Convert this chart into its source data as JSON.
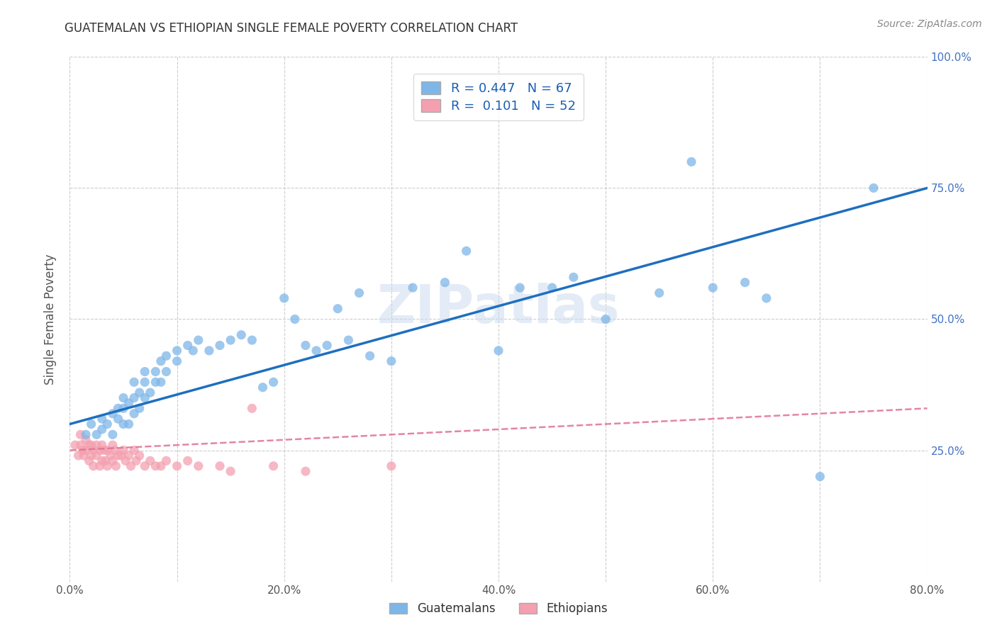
{
  "title": "GUATEMALAN VS ETHIOPIAN SINGLE FEMALE POVERTY CORRELATION CHART",
  "source": "Source: ZipAtlas.com",
  "ylabel": "Single Female Poverty",
  "xlim": [
    0.0,
    0.8
  ],
  "ylim": [
    0.0,
    1.0
  ],
  "xtick_labels": [
    "0.0%",
    "",
    "20.0%",
    "",
    "40.0%",
    "",
    "60.0%",
    "",
    "80.0%"
  ],
  "xtick_vals": [
    0.0,
    0.1,
    0.2,
    0.3,
    0.4,
    0.5,
    0.6,
    0.7,
    0.8
  ],
  "ytick_labels": [
    "25.0%",
    "50.0%",
    "75.0%",
    "100.0%"
  ],
  "ytick_vals": [
    0.25,
    0.5,
    0.75,
    1.0
  ],
  "watermark": "ZIPatlas",
  "guatemalan_color": "#7eb6e8",
  "ethiopian_color": "#f4a0b0",
  "guatemalan_line_color": "#1e6fbf",
  "ethiopian_line_color": "#e07090",
  "background_color": "#ffffff",
  "grid_color": "#c8c8c8",
  "guatemalan_x": [
    0.015,
    0.02,
    0.025,
    0.03,
    0.03,
    0.035,
    0.04,
    0.04,
    0.045,
    0.045,
    0.05,
    0.05,
    0.05,
    0.055,
    0.055,
    0.06,
    0.06,
    0.06,
    0.065,
    0.065,
    0.07,
    0.07,
    0.07,
    0.075,
    0.08,
    0.08,
    0.085,
    0.085,
    0.09,
    0.09,
    0.1,
    0.1,
    0.11,
    0.115,
    0.12,
    0.13,
    0.14,
    0.15,
    0.16,
    0.17,
    0.18,
    0.19,
    0.2,
    0.21,
    0.22,
    0.23,
    0.24,
    0.25,
    0.26,
    0.27,
    0.28,
    0.3,
    0.32,
    0.35,
    0.37,
    0.4,
    0.42,
    0.45,
    0.47,
    0.5,
    0.55,
    0.58,
    0.6,
    0.63,
    0.65,
    0.7,
    0.75
  ],
  "guatemalan_y": [
    0.28,
    0.3,
    0.28,
    0.29,
    0.31,
    0.3,
    0.32,
    0.28,
    0.33,
    0.31,
    0.3,
    0.33,
    0.35,
    0.34,
    0.3,
    0.35,
    0.38,
    0.32,
    0.36,
    0.33,
    0.38,
    0.4,
    0.35,
    0.36,
    0.38,
    0.4,
    0.42,
    0.38,
    0.4,
    0.43,
    0.42,
    0.44,
    0.45,
    0.44,
    0.46,
    0.44,
    0.45,
    0.46,
    0.47,
    0.46,
    0.37,
    0.38,
    0.54,
    0.5,
    0.45,
    0.44,
    0.45,
    0.52,
    0.46,
    0.55,
    0.43,
    0.42,
    0.56,
    0.57,
    0.63,
    0.44,
    0.56,
    0.56,
    0.58,
    0.5,
    0.55,
    0.8,
    0.56,
    0.57,
    0.54,
    0.2,
    0.75
  ],
  "ethiopian_x": [
    0.005,
    0.008,
    0.01,
    0.01,
    0.012,
    0.013,
    0.015,
    0.015,
    0.018,
    0.018,
    0.02,
    0.02,
    0.022,
    0.022,
    0.025,
    0.025,
    0.028,
    0.028,
    0.03,
    0.03,
    0.032,
    0.033,
    0.035,
    0.035,
    0.038,
    0.04,
    0.04,
    0.042,
    0.043,
    0.045,
    0.048,
    0.05,
    0.052,
    0.055,
    0.057,
    0.06,
    0.062,
    0.065,
    0.07,
    0.075,
    0.08,
    0.085,
    0.09,
    0.1,
    0.11,
    0.12,
    0.14,
    0.15,
    0.17,
    0.19,
    0.22,
    0.3
  ],
  "ethiopian_y": [
    0.26,
    0.24,
    0.28,
    0.26,
    0.25,
    0.24,
    0.27,
    0.25,
    0.26,
    0.23,
    0.26,
    0.24,
    0.25,
    0.22,
    0.26,
    0.24,
    0.25,
    0.22,
    0.26,
    0.23,
    0.25,
    0.23,
    0.25,
    0.22,
    0.24,
    0.26,
    0.23,
    0.25,
    0.22,
    0.24,
    0.24,
    0.25,
    0.23,
    0.24,
    0.22,
    0.25,
    0.23,
    0.24,
    0.22,
    0.23,
    0.22,
    0.22,
    0.23,
    0.22,
    0.23,
    0.22,
    0.22,
    0.21,
    0.33,
    0.22,
    0.21,
    0.22
  ],
  "guate_line_x": [
    0.0,
    0.8
  ],
  "guate_line_y": [
    0.3,
    0.75
  ],
  "ethio_line_x": [
    0.0,
    0.8
  ],
  "ethio_line_y": [
    0.25,
    0.33
  ],
  "legend_label_guate": "R = 0.447   N = 67",
  "legend_label_ethio": "R =  0.101   N = 52",
  "legend_labels_bottom": [
    "Guatemalans",
    "Ethiopians"
  ]
}
